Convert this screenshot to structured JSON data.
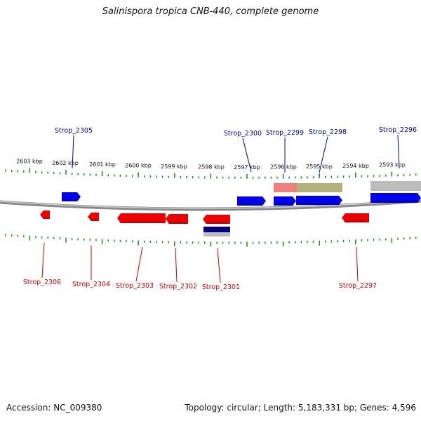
{
  "title": "Salinispora tropica CNB-440, complete genome",
  "footer": {
    "accession": "Accession: NC_009380",
    "summary": "Topology: circular; Length: 5,183,331 bp; Genes: 4,596"
  },
  "colors": {
    "forward_gene": "#0000ee",
    "reverse_gene": "#ee0000",
    "forward_label": "#0000aa",
    "reverse_label": "#cc0000",
    "tick": "#008800",
    "backbone": "#888888",
    "feature_gray": "#bbbbbb",
    "feature_pink": "#f08080",
    "feature_olive": "#b5b07a",
    "feature_navy": "#000080"
  },
  "scale_labels": [
    "2603 kbp",
    "2602 kbp",
    "2601 kbp",
    "2600 kbp",
    "2599 kbp",
    "2598 kbp",
    "2597 kbp",
    "2596 kbp",
    "2595 kbp",
    "2594 kbp",
    "2593 kbp"
  ],
  "forward_genes": [
    {
      "id": "Strop_2305",
      "label": "Strop_2305"
    },
    {
      "id": "Strop_2300",
      "label": "Strop_2300"
    },
    {
      "id": "Strop_2299",
      "label": "Strop_2299"
    },
    {
      "id": "Strop_2298",
      "label": "Strop_2298"
    },
    {
      "id": "Strop_2296",
      "label": "Strop_2296"
    }
  ],
  "reverse_genes": [
    {
      "id": "Strop_2306",
      "label": "Strop_2306"
    },
    {
      "id": "Strop_2304",
      "label": "Strop_2304"
    },
    {
      "id": "Strop_2303",
      "label": "Strop_2303"
    },
    {
      "id": "Strop_2302",
      "label": "Strop_2302"
    },
    {
      "id": "Strop_2301",
      "label": "Strop_2301"
    },
    {
      "id": "Strop_2297",
      "label": "Strop_2297"
    }
  ]
}
